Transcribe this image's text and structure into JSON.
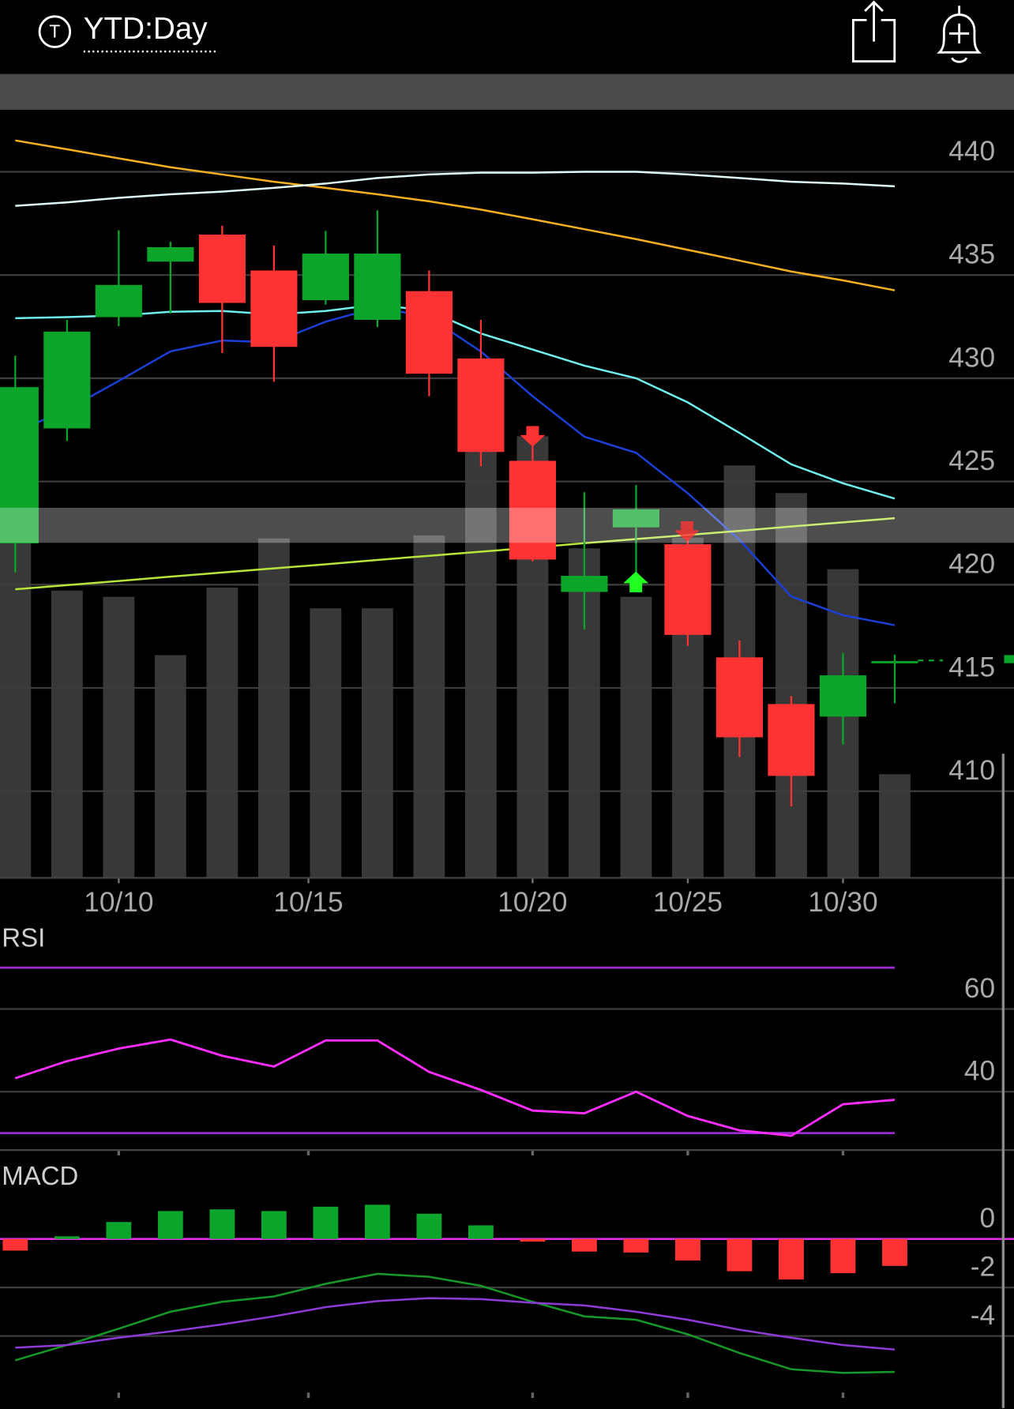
{
  "header": {
    "icon_label": "T",
    "title": "YTD:Day"
  },
  "chart_data": [
    {
      "type": "candlestick",
      "x": [
        "10/6",
        "10/9",
        "10/10",
        "10/11",
        "10/12",
        "10/13",
        "10/16",
        "10/17",
        "10/18",
        "10/19",
        "10/20",
        "10/23",
        "10/24",
        "10/25",
        "10/26",
        "10/27",
        "10/30",
        "10/31"
      ],
      "xticks": [
        "10/10",
        "10/15",
        "10/20",
        "10/25",
        "10/30"
      ],
      "ylim": [
        405.8,
        443
      ],
      "yticks": [
        410,
        415,
        420,
        425,
        430,
        435,
        440
      ],
      "grid": true,
      "up_color": "#0aa52a",
      "down_color": "#ff3333",
      "open": [
        422.0,
        427.57,
        432.96,
        435.65,
        436.96,
        435.22,
        433.78,
        432.83,
        434.22,
        430.96,
        426.0,
        419.65,
        422.78,
        421.96,
        416.48,
        414.22,
        413.61,
        416.3
      ],
      "high": [
        431.09,
        432.83,
        437.17,
        436.61,
        437.39,
        436.43,
        437.13,
        438.13,
        435.22,
        432.83,
        427.17,
        424.48,
        424.83,
        422.26,
        417.3,
        414.61,
        416.7,
        416.61
      ],
      "low": [
        420.6,
        426.96,
        432.52,
        433.13,
        431.22,
        429.83,
        433.57,
        432.48,
        429.13,
        425.74,
        421.13,
        417.83,
        420.35,
        417.04,
        411.65,
        409.26,
        412.26,
        414.26
      ],
      "close": [
        429.57,
        432.26,
        434.52,
        436.35,
        433.65,
        431.52,
        436.04,
        436.04,
        430.22,
        426.43,
        421.22,
        420.43,
        423.65,
        417.57,
        412.61,
        410.74,
        415.61,
        416.3
      ],
      "volume": {
        "color": "#383838",
        "values": [
          44.1,
          37.4,
          36.6,
          29.0,
          37.8,
          44.2,
          35.1,
          35.1,
          44.6,
          55.8,
          57.5,
          42.9,
          36.6,
          44.3,
          53.7,
          50.1,
          40.2,
          13.5
        ]
      },
      "series": [
        {
          "color": "#f5b021",
          "values": [
            441.52,
            441.09,
            440.65,
            440.22,
            439.87,
            439.52,
            439.22,
            438.91,
            438.57,
            438.17,
            437.7,
            437.22,
            436.74,
            436.22,
            435.7,
            435.17,
            434.74,
            434.26
          ]
        },
        {
          "color": "#dff7f7",
          "values": [
            438.35,
            438.52,
            438.74,
            438.91,
            439.04,
            439.22,
            439.43,
            439.7,
            439.87,
            439.96,
            439.96,
            440.0,
            440.0,
            439.87,
            439.7,
            439.52,
            439.43,
            439.3
          ]
        },
        {
          "color": "#6ff0ee",
          "values": [
            432.91,
            432.96,
            433.04,
            433.22,
            433.26,
            433.09,
            433.26,
            433.57,
            433.26,
            432.17,
            431.39,
            430.61,
            430.0,
            428.83,
            427.35,
            425.83,
            424.91,
            424.17
          ]
        },
        {
          "color": "#1c3fd6",
          "values": [
            427.39,
            428.48,
            429.87,
            431.3,
            431.83,
            431.74,
            432.74,
            433.43,
            432.96,
            431.3,
            429.13,
            427.17,
            426.39,
            424.43,
            422.17,
            419.43,
            418.52,
            418.04
          ]
        },
        {
          "color": "#b5e43a",
          "values": [
            419.78,
            419.98,
            420.18,
            420.39,
            420.59,
            420.79,
            420.99,
            421.2,
            421.4,
            421.6,
            421.8,
            422.01,
            422.21,
            422.41,
            422.61,
            422.82,
            423.02,
            423.22
          ]
        }
      ]
    },
    {
      "type": "line",
      "title": "RSI",
      "ylim": [
        25.9,
        80.2
      ],
      "yticks": [
        40,
        60
      ],
      "grid": true,
      "levels": {
        "color": "#9a2bd0",
        "values": [
          30,
          70
        ]
      },
      "series": [
        {
          "color": "#ff2dff",
          "values": [
            43.26,
            47.39,
            50.43,
            52.61,
            48.7,
            46.09,
            52.39,
            52.39,
            44.78,
            40.43,
            35.43,
            34.78,
            40.0,
            34.13,
            30.65,
            29.35,
            36.96,
            38.04
          ]
        }
      ]
    },
    {
      "type": "macd",
      "title": "MACD",
      "ylim": [
        -6.33,
        3.11
      ],
      "yticks": [
        0,
        -2,
        -4
      ],
      "grid": true,
      "zero_line_color": "#ff2dff",
      "up_color": "#0aa52a",
      "down_color": "#ff3333",
      "histogram": [
        -0.48,
        0.11,
        0.7,
        1.15,
        1.22,
        1.15,
        1.33,
        1.41,
        1.04,
        0.56,
        -0.11,
        -0.52,
        -0.56,
        -0.89,
        -1.33,
        -1.67,
        -1.41,
        -1.11
      ],
      "series": [
        {
          "color": "#16992a",
          "values": [
            -5.0,
            -4.37,
            -3.7,
            -3.0,
            -2.59,
            -2.37,
            -1.85,
            -1.44,
            -1.56,
            -1.93,
            -2.59,
            -3.19,
            -3.33,
            -3.93,
            -4.7,
            -5.37,
            -5.52,
            -5.48
          ]
        },
        {
          "color": "#8e3bd6",
          "values": [
            -4.48,
            -4.37,
            -4.07,
            -3.81,
            -3.52,
            -3.19,
            -2.81,
            -2.56,
            -2.44,
            -2.48,
            -2.63,
            -2.74,
            -3.0,
            -3.33,
            -3.74,
            -4.07,
            -4.37,
            -4.56
          ]
        }
      ]
    }
  ]
}
